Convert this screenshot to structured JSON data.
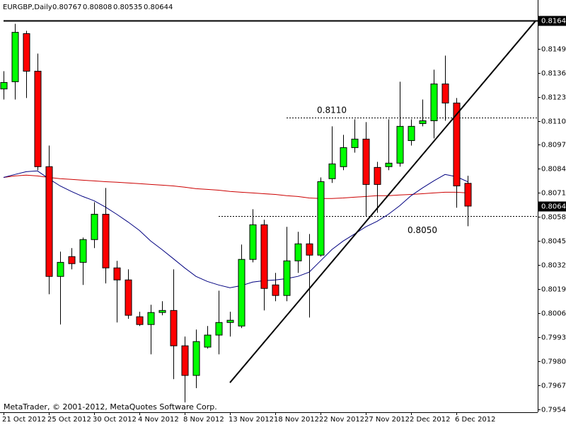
{
  "chart_data": {
    "type": "candlestick",
    "title": "EURGBP,Daily",
    "footer": "MetaTrader, © 2001-2012, MetaQuotes Software Corp.",
    "categories": [
      "21 Oct 2012",
      null,
      null,
      null,
      "25 Oct 2012",
      null,
      null,
      null,
      "30 Oct 2012",
      null,
      null,
      null,
      "4 Nov 2012",
      null,
      null,
      null,
      "8 Nov 2012",
      null,
      null,
      null,
      "13 Nov 2012",
      null,
      null,
      null,
      "18 Nov 2012",
      null,
      null,
      null,
      "22 Nov 2012",
      null,
      null,
      null,
      "27 Nov 2012",
      null,
      null,
      null,
      "2 Dec 2012",
      null,
      null,
      null,
      "6 Dec 2012",
      null
    ],
    "open": [
      0.81277,
      0.81316,
      0.81576,
      0.81373,
      0.80857,
      0.80264,
      0.80371,
      0.8034,
      0.80463,
      0.806,
      0.8031,
      0.80245,
      0.80046,
      0.80004,
      0.80069,
      0.8008,
      0.79889,
      0.79729,
      0.79882,
      0.79947,
      0.80015,
      0.79996,
      0.80356,
      0.80543,
      0.80218,
      0.80161,
      0.80348,
      0.8044,
      0.80379,
      0.80792,
      0.80857,
      0.8096,
      0.81006,
      0.80853,
      0.80857,
      0.80876,
      0.80998,
      0.8109,
      0.81105,
      0.81304,
      0.81201,
      0.80767
    ],
    "high": [
      0.81373,
      0.81629,
      0.81591,
      0.81468,
      0.80971,
      0.80398,
      0.80417,
      0.80474,
      0.80665,
      0.80742,
      0.80348,
      0.80302,
      0.80073,
      0.80111,
      0.8013,
      0.80302,
      0.79939,
      0.79977,
      0.79996,
      0.80187,
      0.80073,
      0.80436,
      0.80627,
      0.8057,
      0.80283,
      0.80532,
      0.80505,
      0.80493,
      0.80799,
      0.81075,
      0.81029,
      0.81113,
      0.81098,
      0.80883,
      0.81113,
      0.81316,
      0.81113,
      0.8122,
      0.81381,
      0.81457,
      0.81228,
      0.80808
    ],
    "low": [
      0.8122,
      0.8122,
      0.81228,
      0.80838,
      0.80168,
      0.80004,
      0.80302,
      0.80218,
      0.80417,
      0.80226,
      0.80015,
      0.80035,
      0.79996,
      0.79843,
      0.80054,
      0.79709,
      0.79583,
      0.7966,
      0.79874,
      0.79843,
      0.79939,
      0.79985,
      0.8034,
      0.8008,
      0.8013,
      0.8013,
      0.80283,
      0.80042,
      0.80371,
      0.80769,
      0.80838,
      0.80933,
      0.80589,
      0.80608,
      0.80838,
      0.80857,
      0.80971,
      0.81075,
      0.8101,
      0.81105,
      0.80635,
      0.80535
    ],
    "close": [
      0.81312,
      0.81583,
      0.81373,
      0.80857,
      0.80264,
      0.8034,
      0.80333,
      0.80463,
      0.806,
      0.8031,
      0.80245,
      0.80054,
      0.80004,
      0.80069,
      0.8008,
      0.79889,
      0.79729,
      0.79912,
      0.79947,
      0.80015,
      0.80027,
      0.80356,
      0.80543,
      0.80199,
      0.80161,
      0.80348,
      0.8044,
      0.80379,
      0.80776,
      0.80872,
      0.8096,
      0.81006,
      0.80761,
      0.80761,
      0.80876,
      0.81075,
      0.81075,
      0.81105,
      0.81304,
      0.81201,
      0.80753,
      0.80644
    ],
    "up_color": "#00ff00",
    "down_color": "#ff0000",
    "overlays": [
      {
        "color": "#cc0000",
        "values": [
          0.80799,
          0.80807,
          0.80811,
          0.80807,
          0.80799,
          0.80792,
          0.80788,
          0.80784,
          0.8078,
          0.80776,
          0.80773,
          0.80769,
          0.80765,
          0.80761,
          0.80757,
          0.80753,
          0.80746,
          0.80738,
          0.80734,
          0.8073,
          0.80723,
          0.80719,
          0.80715,
          0.80711,
          0.80707,
          0.807,
          0.80696,
          0.80688,
          0.80685,
          0.80685,
          0.80688,
          0.80692,
          0.80696,
          0.807,
          0.807,
          0.80704,
          0.80707,
          0.80711,
          0.80715,
          0.80719,
          0.80719,
          0.80715
        ]
      },
      {
        "color": "#000080",
        "values": [
          0.80799,
          0.80815,
          0.8083,
          0.80834,
          0.80792,
          0.80753,
          0.80723,
          0.80696,
          0.80673,
          0.80639,
          0.806,
          0.80558,
          0.80513,
          0.80455,
          0.80409,
          0.8036,
          0.8031,
          0.80264,
          0.80237,
          0.80218,
          0.80203,
          0.80214,
          0.80233,
          0.80241,
          0.80245,
          0.80252,
          0.80264,
          0.80287,
          0.80348,
          0.80409,
          0.80455,
          0.80493,
          0.80532,
          0.80562,
          0.806,
          0.80646,
          0.807,
          0.80742,
          0.8078,
          0.80815,
          0.80803,
          0.80776
        ]
      }
    ],
    "hlines": [
      {
        "value": 0.81122,
        "style": "dotted",
        "from": 25
      },
      {
        "value": 0.80589,
        "style": "dotted",
        "from": 19
      },
      {
        "value": 0.81645,
        "style": "solid",
        "from": 0
      }
    ],
    "annotations": [
      {
        "text": "0.8110",
        "at": 28
      },
      {
        "text": "0.8050",
        "at": 36
      }
    ],
    "trendline": {
      "from": [
        20,
        0.7969
      ],
      "to": [
        47,
        0.81645
      ]
    },
    "ylim": [
      0.7953,
      0.8175
    ],
    "yticks": [
      0.79545,
      0.79675,
      0.79805,
      0.79935,
      0.80065,
      0.80195,
      0.80325,
      0.80455,
      0.80585,
      0.80715,
      0.80845,
      0.80975,
      0.81105,
      0.81235,
      0.81365,
      0.81495
    ]
  }
}
